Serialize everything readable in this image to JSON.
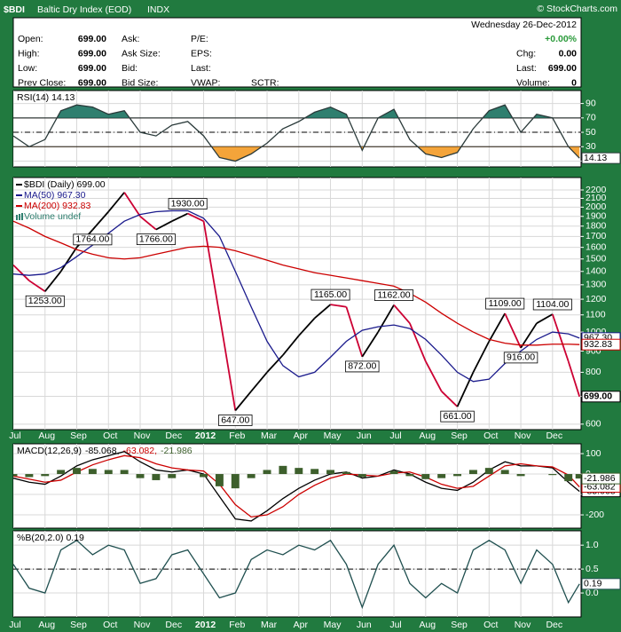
{
  "header": {
    "symbol": "$BDI",
    "name": "Baltic Dry Index (EOD)",
    "exchange": "INDX",
    "credit": "© StockCharts.com",
    "date": "Wednesday  26-Dec-2012",
    "change_pct": "+0.00%",
    "left": [
      {
        "label": "Open:",
        "value": "699.00"
      },
      {
        "label": "High:",
        "value": "699.00"
      },
      {
        "label": "Low:",
        "value": "699.00"
      },
      {
        "label": "Prev Close:",
        "value": "699.00"
      }
    ],
    "middle": [
      "Ask:",
      "Ask Size:",
      "Bid:",
      "Bid Size:"
    ],
    "third": [
      "P/E:",
      "EPS:",
      "Last:",
      "VWAP:"
    ],
    "sctr": "SCTR:",
    "right": [
      {
        "label": "Chg:",
        "value": "0.00"
      },
      {
        "label": "Last:",
        "value": "699.00"
      },
      {
        "label": "Volume:",
        "value": "0"
      }
    ]
  },
  "chart_data": [
    {
      "type": "line",
      "title": "RSI(14) 14.13",
      "ylim": [
        2,
        108
      ],
      "yticks": [
        10,
        30,
        50,
        70,
        90
      ],
      "grid": true,
      "bands": {
        "upper": 70,
        "lower": 30,
        "upper_color": "#2f7f6f",
        "lower_color": "#f4a43a"
      },
      "midline": 50,
      "series": [
        {
          "color": "#2a3a3a",
          "values": [
            45,
            30,
            40,
            80,
            88,
            85,
            75,
            80,
            50,
            45,
            60,
            65,
            45,
            15,
            10,
            20,
            35,
            55,
            65,
            78,
            85,
            75,
            25,
            70,
            82,
            40,
            20,
            15,
            22,
            55,
            80,
            88,
            50,
            75,
            70,
            30,
            14.13
          ],
          "value_labels": [
            null,
            null,
            null,
            null,
            null,
            null,
            null,
            null,
            null,
            null,
            null,
            null,
            null,
            null,
            null,
            null,
            null,
            null,
            null,
            null,
            null,
            null,
            null,
            null,
            null,
            null,
            null,
            null,
            null,
            null,
            null,
            null,
            null,
            null,
            null,
            null,
            "14.13"
          ]
        }
      ]
    },
    {
      "type": "line",
      "log": true,
      "ylim": [
        582,
        2357
      ],
      "grid": true,
      "legend": "upper left",
      "yticks": [
        600,
        700,
        800,
        900,
        1000,
        1100,
        1200,
        1300,
        1400,
        1500,
        1600,
        1700,
        1800,
        1900,
        2000,
        2100,
        2200
      ],
      "xlim": [
        0,
        17.9
      ],
      "xticks": [
        {
          "value": 0,
          "label": "Jul"
        },
        {
          "value": 1,
          "label": "Aug"
        },
        {
          "value": 2,
          "label": "Sep"
        },
        {
          "value": 3,
          "label": "Oct"
        },
        {
          "value": 4,
          "label": "Nov"
        },
        {
          "value": 5,
          "label": "Dec"
        },
        {
          "value": 6,
          "label": "2012"
        },
        {
          "value": 7,
          "label": "Feb"
        },
        {
          "value": 8,
          "label": "Mar"
        },
        {
          "value": 9,
          "label": "Apr"
        },
        {
          "value": 10,
          "label": "May"
        },
        {
          "value": 11,
          "label": "Jun"
        },
        {
          "value": 12,
          "label": "Jul"
        },
        {
          "value": 13,
          "label": "Aug"
        },
        {
          "value": 14,
          "label": "Sep"
        },
        {
          "value": 15,
          "label": "Oct"
        },
        {
          "value": 16,
          "label": "Nov"
        },
        {
          "value": 17,
          "label": "Dec"
        }
      ],
      "x": [
        0,
        0.5,
        1,
        1.5,
        2,
        2.5,
        3,
        3.5,
        4,
        4.5,
        5,
        5.5,
        6,
        6.5,
        7,
        7.5,
        8,
        8.5,
        9,
        9.5,
        10,
        10.5,
        11,
        11.5,
        12,
        12.5,
        13,
        13.5,
        14,
        14.5,
        15,
        15.5,
        16,
        16.5,
        17,
        17.5,
        17.85
      ],
      "volume_label": "Volume undef",
      "volume_color": "#2f7f6f",
      "series": [
        {
          "name": "$BDI (Daily) 699.00",
          "color": "#000000",
          "down_color": "#cc0033",
          "values": [
            1450,
            1330,
            1253,
            1400,
            1600,
            1764,
            1950,
            2170,
            1900,
            1766,
            1850,
            1930,
            1850,
            1100,
            647,
            720,
            800,
            880,
            980,
            1080,
            1165,
            1150,
            872,
            1000,
            1162,
            1050,
            850,
            720,
            661,
            800,
            950,
            1109,
            916,
            1050,
            1104,
            850,
            699
          ],
          "value_labels": [
            null,
            null,
            "1253.00",
            null,
            null,
            "1764.00",
            null,
            null,
            null,
            "1766.00",
            null,
            "1930.00",
            null,
            null,
            "647.00",
            null,
            null,
            null,
            null,
            null,
            "1165.00",
            null,
            "872.00",
            null,
            "1162.00",
            null,
            null,
            null,
            "661.00",
            null,
            null,
            "1109.00",
            "916.00",
            null,
            "1104.00",
            null,
            "699.00"
          ]
        },
        {
          "name": "MA(50) 967.30",
          "color": "#1a1a8c",
          "values": [
            1380,
            1370,
            1380,
            1430,
            1520,
            1620,
            1730,
            1850,
            1920,
            1950,
            1960,
            1960,
            1880,
            1700,
            1400,
            1150,
            950,
            830,
            780,
            800,
            870,
            950,
            1010,
            1030,
            1040,
            1020,
            960,
            880,
            800,
            760,
            770,
            840,
            900,
            960,
            1000,
            990,
            967.3
          ],
          "value_labels": [
            null,
            null,
            null,
            null,
            null,
            null,
            null,
            null,
            null,
            null,
            null,
            null,
            null,
            null,
            null,
            null,
            null,
            null,
            null,
            null,
            null,
            null,
            null,
            null,
            null,
            null,
            null,
            null,
            null,
            null,
            null,
            null,
            null,
            null,
            null,
            null,
            "967.30"
          ]
        },
        {
          "name": "MA(200) 932.83",
          "color": "#cc0000",
          "values": [
            1850,
            1780,
            1700,
            1640,
            1580,
            1540,
            1510,
            1500,
            1510,
            1540,
            1570,
            1600,
            1610,
            1600,
            1570,
            1530,
            1490,
            1450,
            1420,
            1390,
            1370,
            1350,
            1330,
            1310,
            1290,
            1240,
            1180,
            1110,
            1050,
            1000,
            960,
            940,
            930,
            930,
            935,
            935,
            932.83
          ],
          "value_labels": [
            null,
            null,
            null,
            null,
            null,
            null,
            null,
            null,
            null,
            null,
            null,
            null,
            null,
            null,
            null,
            null,
            null,
            null,
            null,
            null,
            null,
            null,
            null,
            null,
            null,
            null,
            null,
            null,
            null,
            null,
            null,
            null,
            null,
            null,
            null,
            null,
            "932.83"
          ]
        }
      ]
    },
    {
      "type": "line",
      "title": "MACD(12,26,9)",
      "legend": "title",
      "ylim": [
        -265,
        148
      ],
      "yticks": [
        -200,
        -100,
        0,
        100
      ],
      "grid": true,
      "series": [
        {
          "name": "-85.068,",
          "color": "#000000",
          "values": [
            -20,
            -40,
            -50,
            -10,
            40,
            70,
            90,
            110,
            60,
            20,
            10,
            20,
            0,
            -110,
            -220,
            -230,
            -180,
            -120,
            -70,
            -30,
            0,
            10,
            -20,
            -10,
            20,
            0,
            -40,
            -70,
            -80,
            -40,
            20,
            60,
            40,
            40,
            30,
            -40,
            -85.068
          ],
          "value_labels": [
            null,
            null,
            null,
            null,
            null,
            null,
            null,
            null,
            null,
            null,
            null,
            null,
            null,
            null,
            null,
            null,
            null,
            null,
            null,
            null,
            null,
            null,
            null,
            null,
            null,
            null,
            null,
            null,
            null,
            null,
            null,
            null,
            null,
            null,
            null,
            null,
            "-85.068"
          ]
        },
        {
          "name": "-63.082,",
          "color": "#cc0000",
          "values": [
            -10,
            -25,
            -40,
            -30,
            10,
            45,
            70,
            90,
            80,
            50,
            30,
            20,
            15,
            -50,
            -150,
            -210,
            -200,
            -160,
            -100,
            -55,
            -20,
            0,
            -5,
            -10,
            5,
            10,
            -15,
            -50,
            -70,
            -60,
            -10,
            40,
            50,
            40,
            35,
            -5,
            -63.082
          ],
          "value_labels": [
            null,
            null,
            null,
            null,
            null,
            null,
            null,
            null,
            null,
            null,
            null,
            null,
            null,
            null,
            null,
            null,
            null,
            null,
            null,
            null,
            null,
            null,
            null,
            null,
            null,
            null,
            null,
            null,
            null,
            null,
            null,
            null,
            null,
            null,
            null,
            null,
            "-63.082"
          ]
        },
        {
          "name": "-21.986",
          "type": "bar",
          "color": "#3d5f2c",
          "values": [
            -10,
            -15,
            -10,
            20,
            30,
            25,
            20,
            20,
            -20,
            -30,
            -20,
            0,
            -15,
            -60,
            -70,
            -20,
            20,
            40,
            30,
            25,
            20,
            10,
            -15,
            0,
            15,
            -10,
            -25,
            -20,
            -10,
            20,
            30,
            20,
            -10,
            0,
            -5,
            -35,
            -21.986
          ],
          "value_labels": [
            null,
            null,
            null,
            null,
            null,
            null,
            null,
            null,
            null,
            null,
            null,
            null,
            null,
            null,
            null,
            null,
            null,
            null,
            null,
            null,
            null,
            null,
            null,
            null,
            null,
            null,
            null,
            null,
            null,
            null,
            null,
            null,
            null,
            null,
            null,
            null,
            "-21.986"
          ]
        }
      ]
    },
    {
      "type": "line",
      "title": "%B(20,2.0) 0.19",
      "ylim": [
        -0.5,
        1.3
      ],
      "grid": true,
      "midline": 0.5,
      "yticks": [
        {
          "value": 1,
          "label": "1.0"
        },
        0.5,
        {
          "value": 0,
          "label": "0.0"
        }
      ],
      "series": [
        {
          "color": "#1f4f4f",
          "values": [
            0.6,
            0.1,
            0,
            0.9,
            1.1,
            0.8,
            1,
            0.9,
            0.2,
            0.3,
            0.8,
            0.9,
            0.4,
            -0.1,
            0,
            0.7,
            0.9,
            0.8,
            1,
            0.9,
            1.1,
            0.6,
            -0.3,
            0.6,
            1,
            0.2,
            -0.1,
            0.2,
            0,
            0.9,
            1.1,
            0.9,
            0.2,
            0.9,
            0.6,
            -0.2,
            0.19
          ],
          "value_labels": [
            null,
            null,
            null,
            null,
            null,
            null,
            null,
            null,
            null,
            null,
            null,
            null,
            null,
            null,
            null,
            null,
            null,
            null,
            null,
            null,
            null,
            null,
            null,
            null,
            null,
            null,
            null,
            null,
            null,
            null,
            null,
            null,
            null,
            null,
            null,
            null,
            "0.19"
          ]
        }
      ]
    }
  ]
}
